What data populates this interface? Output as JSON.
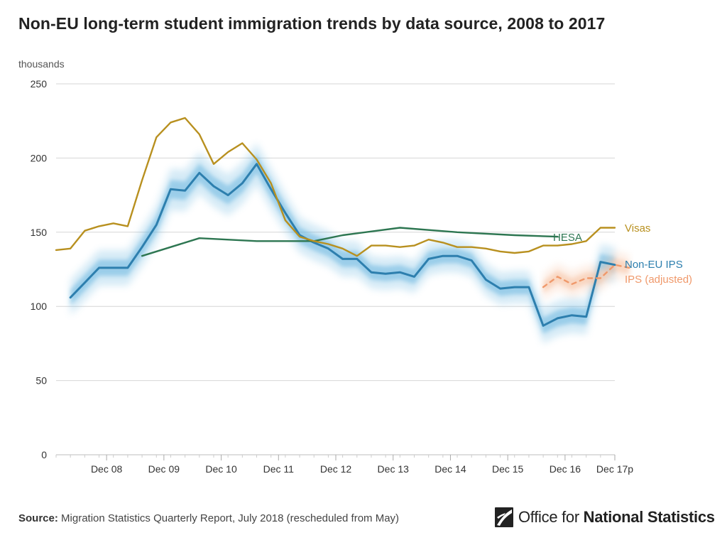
{
  "header": {
    "title": "Non-EU long-term student immigration trends by data source, 2008 to 2017"
  },
  "footer": {
    "source_key": "Source:",
    "source_text": " Migration Statistics Quarterly Report, July 2018 (rescheduled from May)"
  },
  "logo": {
    "name_regular": "Office for ",
    "name_bold": "National Statistics"
  },
  "chart_data": {
    "type": "line",
    "ylabel": "thousands",
    "ylim": [
      0,
      250
    ],
    "yticks": [
      0,
      50,
      100,
      150,
      200,
      250
    ],
    "grid": true,
    "x_periods": 40,
    "x_start": "Mar 07",
    "x_tick_labels": [
      "Dec 08",
      "Dec 09",
      "Dec 10",
      "Dec 11",
      "Dec 12",
      "Dec 13",
      "Dec 14",
      "Dec 15",
      "Dec 16",
      "Dec 17p"
    ],
    "x_tick_index": [
      7,
      11,
      15,
      19,
      23,
      27,
      31,
      35,
      39,
      43
    ],
    "series": [
      {
        "name": "Visas",
        "color": "#b8901f",
        "style": "solid",
        "x_index": [
          3,
          4,
          5,
          6,
          7,
          8,
          9,
          10,
          11,
          12,
          13,
          14,
          15,
          16,
          17,
          18,
          19,
          20,
          21,
          22,
          23,
          24,
          25,
          26,
          27,
          28,
          29,
          30,
          31,
          32,
          33,
          34,
          35,
          36,
          37,
          38,
          39,
          40,
          41,
          42,
          43
        ],
        "values": [
          138,
          139,
          151,
          154,
          156,
          154,
          185,
          214,
          224,
          227,
          216,
          196,
          204,
          210,
          199,
          183,
          158,
          147,
          144,
          142,
          139,
          134,
          141,
          141,
          140,
          141,
          145,
          143,
          140,
          140,
          139,
          137,
          136,
          137,
          141,
          141,
          142,
          144,
          153,
          153,
          null
        ]
      },
      {
        "name": "HESA",
        "color": "#2d7651",
        "style": "solid",
        "x_index": [
          9,
          13,
          17,
          21,
          23,
          27,
          31,
          35,
          38
        ],
        "values": [
          134,
          146,
          144,
          144,
          148,
          153,
          150,
          148,
          147
        ]
      },
      {
        "name": "Non-EU IPS",
        "color": "#2d7fae",
        "band_color": "#6cb7e0",
        "style": "solid",
        "x_index": [
          4,
          5,
          6,
          7,
          8,
          9,
          10,
          11,
          12,
          13,
          14,
          15,
          16,
          17,
          18,
          19,
          20,
          21,
          22,
          23,
          24,
          25,
          26,
          27,
          28,
          29,
          30,
          31,
          32,
          33,
          34,
          35,
          36,
          37,
          38,
          39,
          40,
          41,
          42
        ],
        "values": [
          106,
          116,
          126,
          126,
          126,
          140,
          155,
          179,
          178,
          190,
          181,
          175,
          183,
          196,
          179,
          163,
          148,
          143,
          139,
          132,
          132,
          123,
          122,
          123,
          120,
          132,
          134,
          134,
          131,
          118,
          112,
          113,
          113,
          87,
          92,
          94,
          93,
          130,
          128
        ],
        "ci_half_width": [
          12,
          12,
          12,
          12,
          12,
          13,
          13,
          14,
          14,
          14,
          14,
          14,
          14,
          14,
          14,
          13,
          12,
          12,
          12,
          12,
          12,
          11,
          11,
          11,
          11,
          11,
          11,
          11,
          11,
          11,
          11,
          11,
          11,
          12,
          12,
          12,
          12,
          12,
          12
        ]
      },
      {
        "name": "IPS (adjusted)",
        "color": "#f0996b",
        "band_color": "#f7c4a6",
        "style": "dashed",
        "x_index": [
          37,
          38,
          39,
          40,
          41,
          42,
          43,
          44
        ],
        "values": [
          113,
          120,
          115,
          119,
          119,
          128,
          126,
          null
        ],
        "ci_half_width": [
          9,
          9,
          9,
          9,
          9,
          9,
          9,
          9
        ]
      }
    ]
  }
}
